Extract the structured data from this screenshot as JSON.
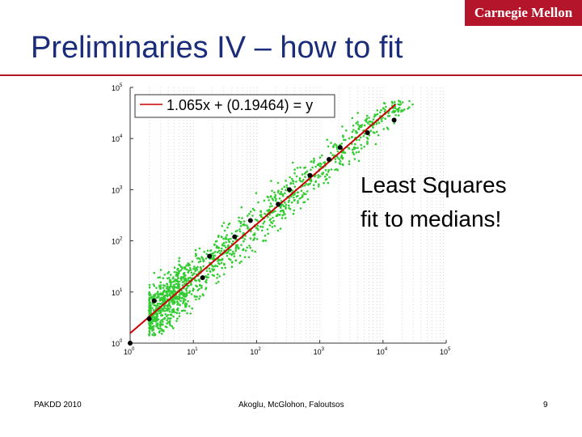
{
  "header": {
    "title": "Preliminaries IV – how to fit",
    "logo_text": "Carnegie Mellon",
    "accent_color": "#b5152b",
    "title_color": "#1b2d7a"
  },
  "callout": {
    "line1": "Least Squares",
    "line2": "fit to medians!"
  },
  "footer": {
    "left": "PAKDD 2010",
    "center": "Akoglu, McGlohon, Faloutsos",
    "page": "9"
  },
  "chart_data": {
    "type": "scatter",
    "x_scale": "log",
    "y_scale": "log",
    "xlim": [
      1,
      100000
    ],
    "ylim": [
      1,
      100000
    ],
    "x_ticks": [
      {
        "value": 1,
        "base": "10",
        "exp": "0"
      },
      {
        "value": 10,
        "base": "10",
        "exp": "1"
      },
      {
        "value": 100,
        "base": "10",
        "exp": "2"
      },
      {
        "value": 1000,
        "base": "10",
        "exp": "3"
      },
      {
        "value": 10000,
        "base": "10",
        "exp": "4"
      },
      {
        "value": 100000,
        "base": "10",
        "exp": "5"
      }
    ],
    "y_ticks": [
      {
        "value": 1,
        "base": "10",
        "exp": "0"
      },
      {
        "value": 10,
        "base": "10",
        "exp": "1"
      },
      {
        "value": 100,
        "base": "10",
        "exp": "2"
      },
      {
        "value": 1000,
        "base": "10",
        "exp": "3"
      },
      {
        "value": 10000,
        "base": "10",
        "exp": "4"
      },
      {
        "value": 100000,
        "base": "10",
        "exp": "5"
      }
    ],
    "grid": "vertical-dotted",
    "legend": {
      "label": "1.065x + (0.19464) = y",
      "position": "top-left"
    },
    "fit_line": {
      "slope": 1.065,
      "intercept": 0.19464,
      "color": "#cc0000"
    },
    "scatter_color": "#33cc33",
    "medians": {
      "color": "#000000",
      "points": [
        [
          1.0,
          1.0
        ],
        [
          2.0,
          3.0
        ],
        [
          2.4,
          6.7
        ],
        [
          14,
          19
        ],
        [
          18,
          50
        ],
        [
          45,
          120
        ],
        [
          80,
          250
        ],
        [
          220,
          520
        ],
        [
          330,
          1000
        ],
        [
          700,
          1900
        ],
        [
          1400,
          3900
        ],
        [
          2100,
          6700
        ],
        [
          5700,
          13000
        ],
        [
          15000,
          23000
        ]
      ]
    }
  }
}
